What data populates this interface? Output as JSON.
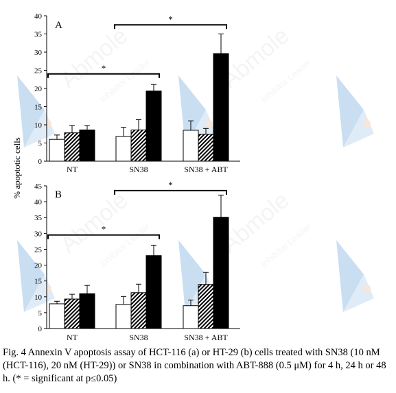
{
  "chart_data": [
    {
      "type": "bar",
      "panel": "A",
      "categories": [
        "NT",
        "SN38",
        "SN38 + ABT"
      ],
      "ylabel": "% apoptotic cells",
      "ylim": [
        0,
        40
      ],
      "yticks": [
        0,
        5,
        10,
        15,
        20,
        25,
        30,
        35,
        40
      ],
      "series": [
        {
          "fill": "white",
          "values": [
            6.0,
            6.8,
            8.5
          ],
          "errors": [
            1.2,
            2.5,
            2.6
          ]
        },
        {
          "fill": "hatched",
          "values": [
            7.8,
            8.6,
            7.4
          ],
          "errors": [
            2.0,
            2.8,
            1.6
          ]
        },
        {
          "fill": "black",
          "values": [
            8.6,
            19.3,
            29.6
          ],
          "errors": [
            1.2,
            1.8,
            5.4
          ]
        }
      ],
      "significance": [
        {
          "from_category": 0,
          "to_category": 1,
          "level": 24.0,
          "label": "*"
        },
        {
          "from_category": 1,
          "to_category": 2,
          "level": 37.5,
          "label": "*"
        }
      ]
    },
    {
      "type": "bar",
      "panel": "B",
      "categories": [
        "NT",
        "SN38",
        "SN38 + ABT"
      ],
      "ylabel": "% apoptotic cells",
      "ylim": [
        0,
        45
      ],
      "yticks": [
        0,
        5,
        10,
        15,
        20,
        25,
        30,
        35,
        40,
        45
      ],
      "series": [
        {
          "fill": "white",
          "values": [
            7.8,
            7.6,
            7.2
          ],
          "errors": [
            0.8,
            2.5,
            1.8
          ]
        },
        {
          "fill": "hatched",
          "values": [
            9.3,
            11.3,
            13.9
          ],
          "errors": [
            1.5,
            2.7,
            3.8
          ]
        },
        {
          "fill": "black",
          "values": [
            11.0,
            23.0,
            35.1
          ],
          "errors": [
            2.6,
            3.3,
            7.0
          ]
        }
      ],
      "significance": [
        {
          "from_category": 0,
          "to_category": 1,
          "level": 29.5,
          "label": "*"
        },
        {
          "from_category": 1,
          "to_category": 2,
          "level": 43.5,
          "label": "*"
        }
      ]
    }
  ],
  "caption": "Fig. 4 Annexin V apoptosis assay of HCT-116 (a) or HT-29 (b) cells treated with SN38 (10 nM (HCT-116), 20 nM (HT-29)) or SN38 in combination with ABT-888 (0.5 μM) for 4 h, 24 h or 48 h. (* = significant at p≤0.05)",
  "watermark": {
    "brand": "Abmole",
    "tagline": "Inhibitor Leader"
  }
}
